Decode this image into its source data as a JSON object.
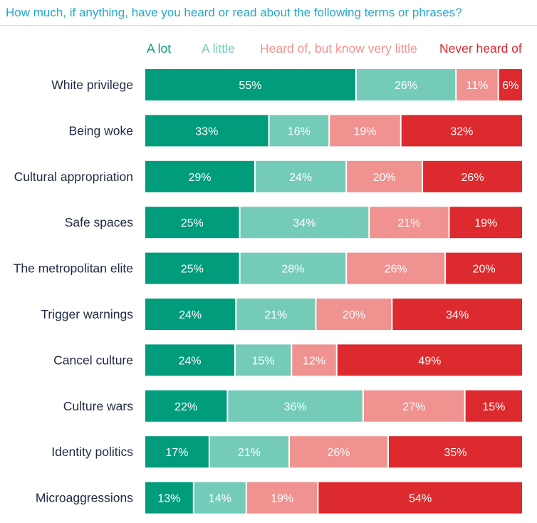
{
  "chart_data": {
    "type": "bar",
    "orientation": "horizontal",
    "stacked": true,
    "title": "How much, if anything, have you heard or read about the following terms or phrases?",
    "categories": [
      "White privilege",
      "Being woke",
      "Cultural appropriation",
      "Safe spaces",
      "The metropolitan elite",
      "Trigger warnings",
      "Cancel culture",
      "Culture wars",
      "Identity politics",
      "Microaggressions"
    ],
    "series": [
      {
        "name": "A lot",
        "color": "#009c7c",
        "values": [
          55,
          33,
          29,
          25,
          25,
          24,
          24,
          22,
          17,
          13
        ]
      },
      {
        "name": "A little",
        "color": "#74ccb8",
        "values": [
          26,
          16,
          24,
          34,
          28,
          21,
          15,
          36,
          21,
          14
        ]
      },
      {
        "name": "Heard of, but know very little",
        "color": "#ef9290",
        "values": [
          11,
          19,
          20,
          21,
          26,
          20,
          12,
          27,
          26,
          19
        ]
      },
      {
        "name": "Never heard of",
        "color": "#dd2a2e",
        "values": [
          6,
          32,
          26,
          19,
          20,
          34,
          49,
          15,
          35,
          54
        ]
      }
    ],
    "value_suffix": "%",
    "legend_position": "top",
    "title_color": "#29a8c8",
    "category_label_color": "#1f2a44",
    "value_label_color": "#ffffff"
  }
}
